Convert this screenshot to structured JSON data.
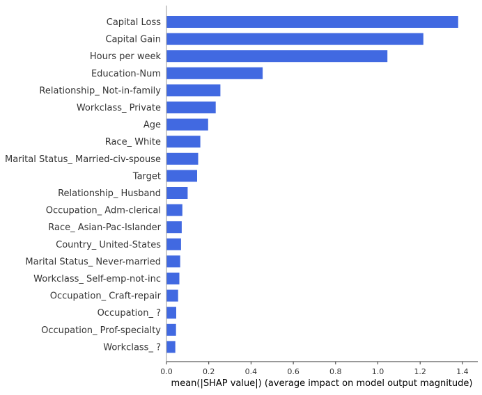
{
  "chart_data": {
    "type": "bar",
    "orientation": "horizontal",
    "title": "",
    "xlabel": "mean(|SHAP value|) (average impact on model output magnitude)",
    "ylabel": "",
    "xlim": [
      0,
      1.45
    ],
    "xticks": [
      0.0,
      0.2,
      0.4,
      0.6,
      0.8,
      1.0,
      1.2,
      1.4
    ],
    "xtick_labels": [
      "0.0",
      "0.2",
      "0.4",
      "0.6",
      "0.8",
      "1.0",
      "1.2",
      "1.4"
    ],
    "grid": false,
    "bar_color": "#4169e1",
    "categories": [
      "Capital Loss",
      "Capital Gain",
      "Hours per week",
      "Education-Num",
      "Relationship_ Not-in-family",
      "Workclass_ Private",
      "Age",
      "Race_ White",
      "Marital Status_ Married-civ-spouse",
      "Target",
      "Relationship_ Husband",
      "Occupation_ Adm-clerical",
      "Race_ Asian-Pac-Islander",
      "Country_ United-States",
      "Marital Status_ Never-married",
      "Workclass_ Self-emp-not-inc",
      "Occupation_ Craft-repair",
      "Occupation_ ?",
      "Occupation_ Prof-specialty",
      "Workclass_ ?"
    ],
    "values": [
      1.38,
      1.215,
      1.045,
      0.455,
      0.255,
      0.233,
      0.197,
      0.16,
      0.15,
      0.145,
      0.1,
      0.075,
      0.072,
      0.069,
      0.065,
      0.061,
      0.055,
      0.046,
      0.045,
      0.042
    ]
  }
}
